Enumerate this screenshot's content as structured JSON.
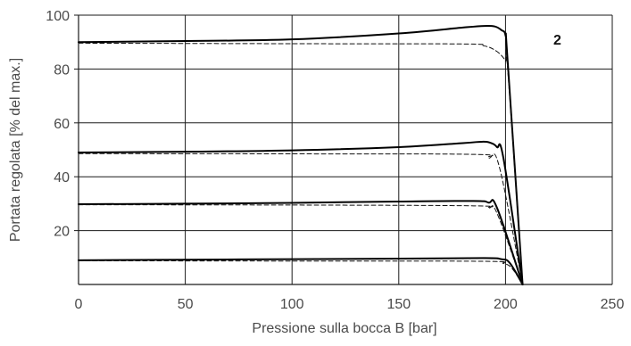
{
  "chart_data": {
    "type": "line",
    "title": "",
    "xlabel": "Pressione sulla bocca B [bar]",
    "ylabel": "Portata regolata [% del max.]",
    "xlim": [
      0,
      250
    ],
    "ylim": [
      0,
      100
    ],
    "x_ticks": [
      0,
      50,
      100,
      150,
      200,
      250
    ],
    "y_ticks": [
      20,
      40,
      60,
      80,
      100
    ],
    "x_tick_labels": [
      "0",
      "50",
      "100",
      "150",
      "200",
      "250"
    ],
    "y_tick_labels": [
      "20",
      "40",
      "60",
      "80",
      "100"
    ],
    "grid": true,
    "annotation": "2",
    "series": [
      {
        "style": "solid",
        "points": [
          [
            0,
            90
          ],
          [
            50,
            90.4
          ],
          [
            100,
            91
          ],
          [
            150,
            93.2
          ],
          [
            180,
            95.4
          ],
          [
            190,
            96
          ],
          [
            195,
            95.8
          ],
          [
            198,
            94.5
          ],
          [
            200,
            92.5
          ],
          [
            201,
            83
          ],
          [
            208,
            0
          ]
        ]
      },
      {
        "style": "dashed",
        "points": [
          [
            0,
            89.6
          ],
          [
            100,
            89.4
          ],
          [
            180,
            89.3
          ],
          [
            190,
            88.6
          ],
          [
            196,
            86.5
          ],
          [
            200,
            83
          ],
          [
            201,
            80
          ],
          [
            208,
            0
          ]
        ]
      },
      {
        "style": "solid",
        "points": [
          [
            0,
            49
          ],
          [
            50,
            49.3
          ],
          [
            100,
            49.8
          ],
          [
            150,
            51
          ],
          [
            180,
            52.5
          ],
          [
            189,
            53
          ],
          [
            193,
            52.6
          ],
          [
            196,
            51
          ],
          [
            199,
            47
          ],
          [
            208,
            0
          ]
        ]
      },
      {
        "style": "dashed",
        "points": [
          [
            0,
            48.6
          ],
          [
            100,
            48.5
          ],
          [
            185,
            48.3
          ],
          [
            192,
            47
          ],
          [
            197,
            44
          ],
          [
            208,
            0
          ]
        ]
      },
      {
        "style": "solid",
        "points": [
          [
            0,
            29.8
          ],
          [
            50,
            30
          ],
          [
            100,
            30.3
          ],
          [
            150,
            30.8
          ],
          [
            185,
            31
          ],
          [
            192,
            30.4
          ],
          [
            196,
            28.5
          ],
          [
            208,
            0
          ]
        ]
      },
      {
        "style": "dashed",
        "points": [
          [
            0,
            29.6
          ],
          [
            100,
            29.5
          ],
          [
            185,
            29.2
          ],
          [
            192,
            28.4
          ],
          [
            196,
            26.5
          ],
          [
            208,
            0
          ]
        ]
      },
      {
        "style": "solid",
        "points": [
          [
            0,
            9
          ],
          [
            50,
            9.2
          ],
          [
            100,
            9.4
          ],
          [
            150,
            9.6
          ],
          [
            190,
            9.8
          ],
          [
            198,
            9.4
          ],
          [
            202,
            8
          ],
          [
            208,
            0
          ]
        ]
      },
      {
        "style": "dashed",
        "points": [
          [
            0,
            8.8
          ],
          [
            100,
            8.7
          ],
          [
            190,
            8.6
          ],
          [
            199,
            7.8
          ],
          [
            203,
            6
          ],
          [
            208,
            0
          ]
        ]
      }
    ]
  },
  "style": {
    "solid_color": "#000000",
    "dashed_color": "#111111",
    "grid_color": "#1a1a1a",
    "text_color": "#4a4a4a"
  }
}
